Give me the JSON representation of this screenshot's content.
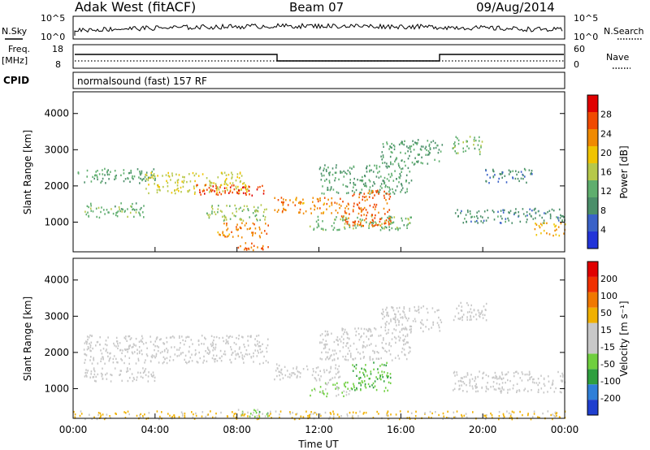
{
  "header": {
    "station": "Adak West (fitACF)",
    "beam": "Beam 07",
    "date": "09/Aug/2014"
  },
  "noise_panel": {
    "left_label": "N.Sky",
    "right_label": "N.Search",
    "left_ticks": [
      "10^5",
      "10^0"
    ],
    "right_ticks": [
      "10^5",
      "10^0"
    ]
  },
  "freq_panel": {
    "left_label_top": "Freq.",
    "left_label_bottom": "[MHz]",
    "right_label": "Nave",
    "left_ticks": [
      "18",
      "8"
    ],
    "right_ticks": [
      "60",
      "0"
    ]
  },
  "cpid_panel": {
    "label": "CPID",
    "program": "normalsound (fast) 157 RF"
  },
  "time_axis": {
    "title": "Time UT",
    "ticks": [
      "00:00",
      "04:00",
      "08:00",
      "12:00",
      "16:00",
      "20:00",
      "00:00"
    ],
    "start_hour": 0,
    "end_hour": 24
  },
  "range_axis": {
    "title": "Slant Range [km]",
    "ticks": [
      "1000",
      "2000",
      "3000",
      "4000"
    ],
    "range_km": [
      180,
      4600
    ]
  },
  "colors": {
    "power_scale": [
      "#2234d8",
      "#3a62c8",
      "#4b8f6a",
      "#5fae6e",
      "#b6c84a",
      "#f0c400",
      "#f08a00",
      "#f04a00",
      "#e00000"
    ],
    "velocity_scale": [
      "#1f3fcf",
      "#2f7fd8",
      "#2f9f3f",
      "#6fcf3f",
      "#c8c8c8",
      "#c8c8c8",
      "#f0b000",
      "#f07800",
      "#f03000",
      "#e00000"
    ]
  },
  "chart_data": [
    {
      "type": "heatmap",
      "name": "power",
      "colorbar_label": "Power [dB]",
      "colorbar_ticks": [
        "4",
        "8",
        "12",
        "16",
        "20",
        "24",
        "28"
      ],
      "zlim": [
        0,
        30
      ],
      "regions": [
        {
          "t": [
            0.2,
            4.0
          ],
          "r": [
            2100,
            2500
          ],
          "v": 10
        },
        {
          "t": [
            3.5,
            8.5
          ],
          "r": [
            1800,
            2400
          ],
          "v": 16
        },
        {
          "t": [
            6.0,
            9.5
          ],
          "r": [
            1750,
            2050
          ],
          "v": 26
        },
        {
          "t": [
            0.5,
            3.5
          ],
          "r": [
            1150,
            1550
          ],
          "v": 12
        },
        {
          "t": [
            6.5,
            9.5
          ],
          "r": [
            1050,
            1500
          ],
          "v": 14
        },
        {
          "t": [
            7.0,
            9.5
          ],
          "r": [
            600,
            1000
          ],
          "v": 22
        },
        {
          "t": [
            8.0,
            9.5
          ],
          "r": [
            250,
            450
          ],
          "v": 24
        },
        {
          "t": [
            9.8,
            13.0
          ],
          "r": [
            1250,
            1700
          ],
          "v": 22
        },
        {
          "t": [
            12.0,
            16.5
          ],
          "r": [
            1800,
            2600
          ],
          "v": 10
        },
        {
          "t": [
            11.5,
            16.5
          ],
          "r": [
            800,
            1200
          ],
          "v": 12
        },
        {
          "t": [
            13.0,
            15.5
          ],
          "r": [
            900,
            1900
          ],
          "v": 24
        },
        {
          "t": [
            15.0,
            18.0
          ],
          "r": [
            2600,
            3300
          ],
          "v": 10
        },
        {
          "t": [
            18.5,
            20.0
          ],
          "r": [
            2900,
            3400
          ],
          "v": 12
        },
        {
          "t": [
            18.5,
            24.0
          ],
          "r": [
            1000,
            1400
          ],
          "v": 8
        },
        {
          "t": [
            20.0,
            22.5
          ],
          "r": [
            2100,
            2500
          ],
          "v": 8
        },
        {
          "t": [
            22.5,
            24.0
          ],
          "r": [
            650,
            1000
          ],
          "v": 20
        }
      ]
    },
    {
      "type": "heatmap",
      "name": "velocity",
      "colorbar_label": "Velocity [m s⁻¹]",
      "colorbar_ticks": [
        "-200",
        "-100",
        "-50",
        "-15",
        "15",
        "50",
        "100",
        "200"
      ],
      "zlim": [
        -250,
        250
      ],
      "regions": [
        {
          "t": [
            0.5,
            9.5
          ],
          "r": [
            1700,
            2500
          ],
          "v": 0
        },
        {
          "t": [
            0.5,
            4.0
          ],
          "r": [
            1200,
            1600
          ],
          "v": 0
        },
        {
          "t": [
            9.8,
            13.0
          ],
          "r": [
            1250,
            1700
          ],
          "v": 0
        },
        {
          "t": [
            12.0,
            16.5
          ],
          "r": [
            1800,
            2700
          ],
          "v": 0
        },
        {
          "t": [
            11.5,
            13.5
          ],
          "r": [
            800,
            1200
          ],
          "v": -60
        },
        {
          "t": [
            13.5,
            15.5
          ],
          "r": [
            950,
            1750
          ],
          "v": -90
        },
        {
          "t": [
            15.0,
            18.0
          ],
          "r": [
            2600,
            3300
          ],
          "v": 0
        },
        {
          "t": [
            18.5,
            24.0
          ],
          "r": [
            900,
            1500
          ],
          "v": 0
        },
        {
          "t": [
            18.5,
            20.5
          ],
          "r": [
            2900,
            3400
          ],
          "v": 0
        },
        {
          "t": [
            8.0,
            9.5
          ],
          "r": [
            250,
            450
          ],
          "v": -70
        },
        {
          "t": [
            0,
            24
          ],
          "r": [
            180,
            400
          ],
          "v": 60
        }
      ]
    }
  ]
}
